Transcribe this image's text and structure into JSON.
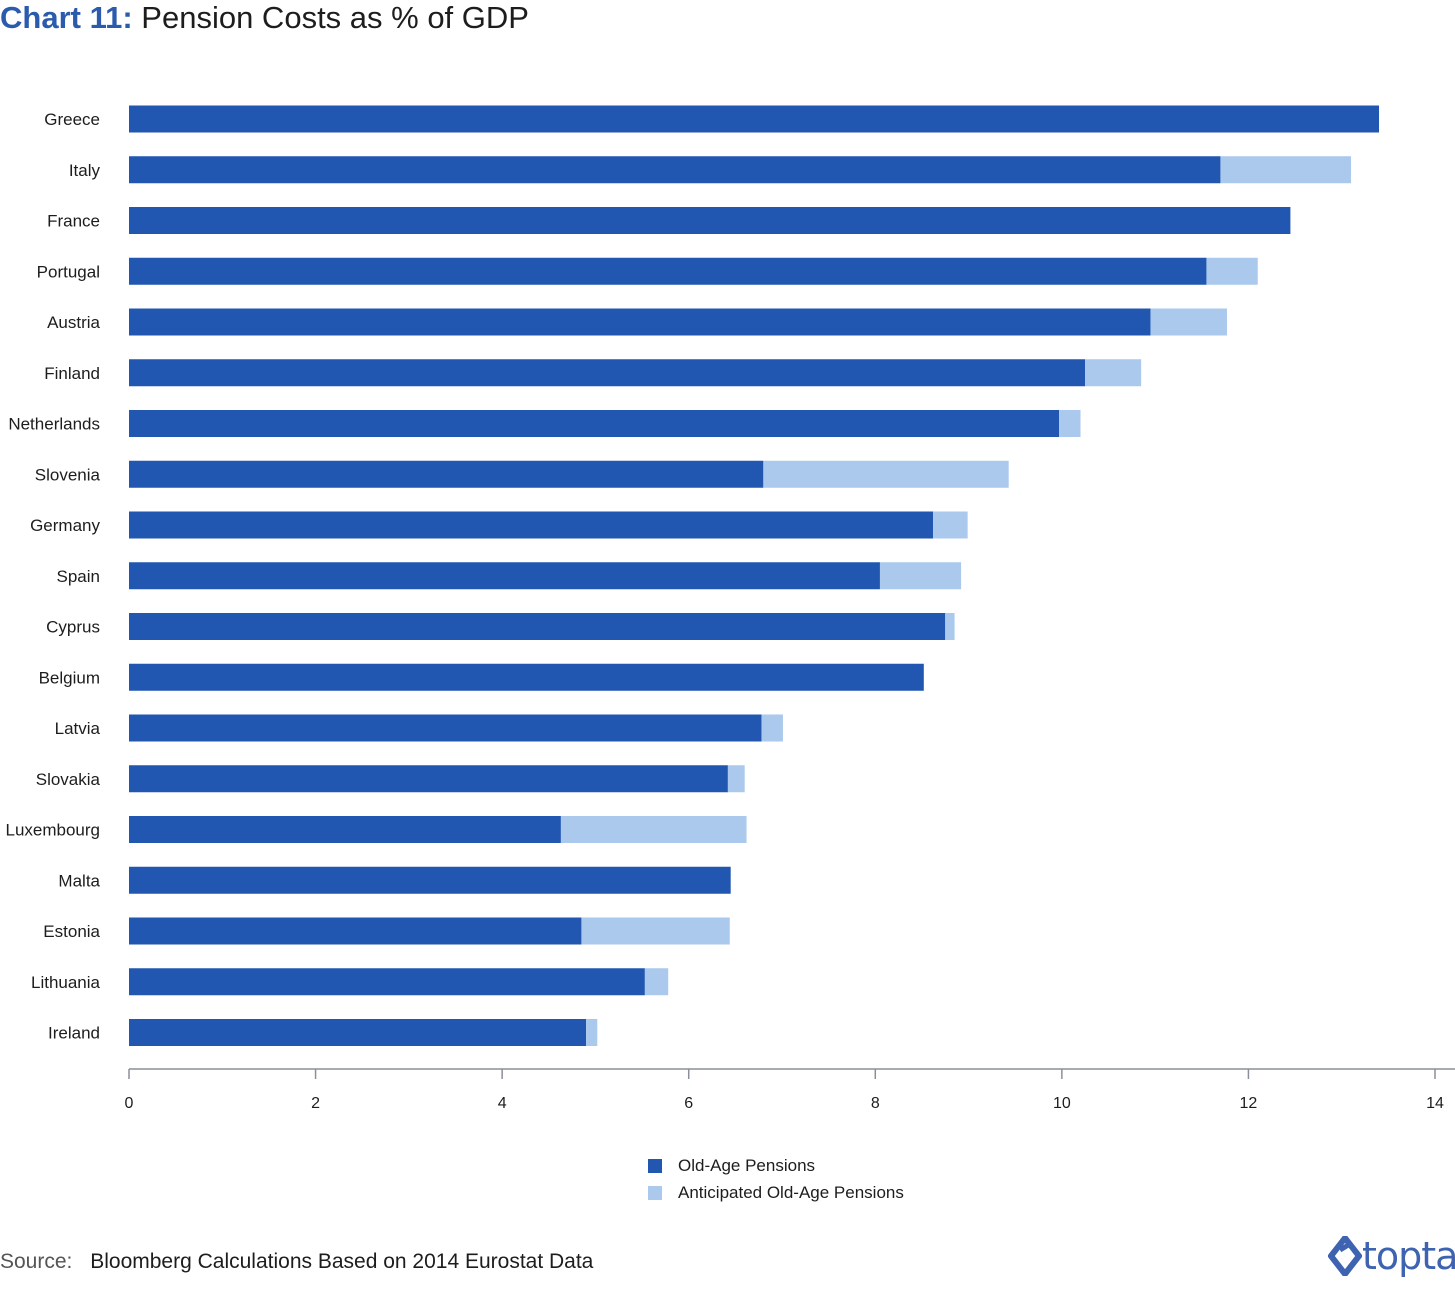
{
  "title": {
    "prefix": "Chart 11:",
    "main": "Pension Costs as % of GDP"
  },
  "colors": {
    "old_age": "#2156b1",
    "anticipated": "#aac9ec",
    "axis": "#8a8f99",
    "title_accent": "#2a5bad"
  },
  "chart_data": {
    "type": "bar",
    "orientation": "horizontal",
    "stacked": true,
    "categories": [
      "Greece",
      "Italy",
      "France",
      "Portugal",
      "Austria",
      "Finland",
      "Netherlands",
      "Slovenia",
      "Germany",
      "Spain",
      "Cyprus",
      "Belgium",
      "Latvia",
      "Slovakia",
      "Luxembourg",
      "Malta",
      "Estonia",
      "Lithuania",
      "Ireland"
    ],
    "series": [
      {
        "name": "Old-Age Pensions",
        "values": [
          13.4,
          11.7,
          12.45,
          11.55,
          10.95,
          10.25,
          9.97,
          6.8,
          8.62,
          8.05,
          8.75,
          8.52,
          6.78,
          6.42,
          4.63,
          6.45,
          4.85,
          5.53,
          4.9
        ]
      },
      {
        "name": "Anticipated Old-Age Pensions",
        "values": [
          0,
          1.4,
          0,
          0.55,
          0.82,
          0.6,
          0.23,
          2.63,
          0.37,
          0.87,
          0.1,
          0,
          0.23,
          0.18,
          1.99,
          0,
          1.59,
          0.25,
          0.12
        ]
      }
    ],
    "xlim": [
      0,
      14
    ],
    "xticks": [
      "0",
      "2",
      "4",
      "6",
      "8",
      "10",
      "12",
      "14"
    ],
    "grid": false,
    "legend_position": "bottom-center"
  },
  "legend": [
    {
      "label": "Old-Age Pensions"
    },
    {
      "label": "Anticipated Old-Age Pensions"
    }
  ],
  "source": {
    "label": "Source:",
    "text": "Bloomberg Calculations Based on 2014 Eurostat Data"
  },
  "logo": {
    "text": "toptal",
    "icon": "toptal-logo-icon"
  }
}
